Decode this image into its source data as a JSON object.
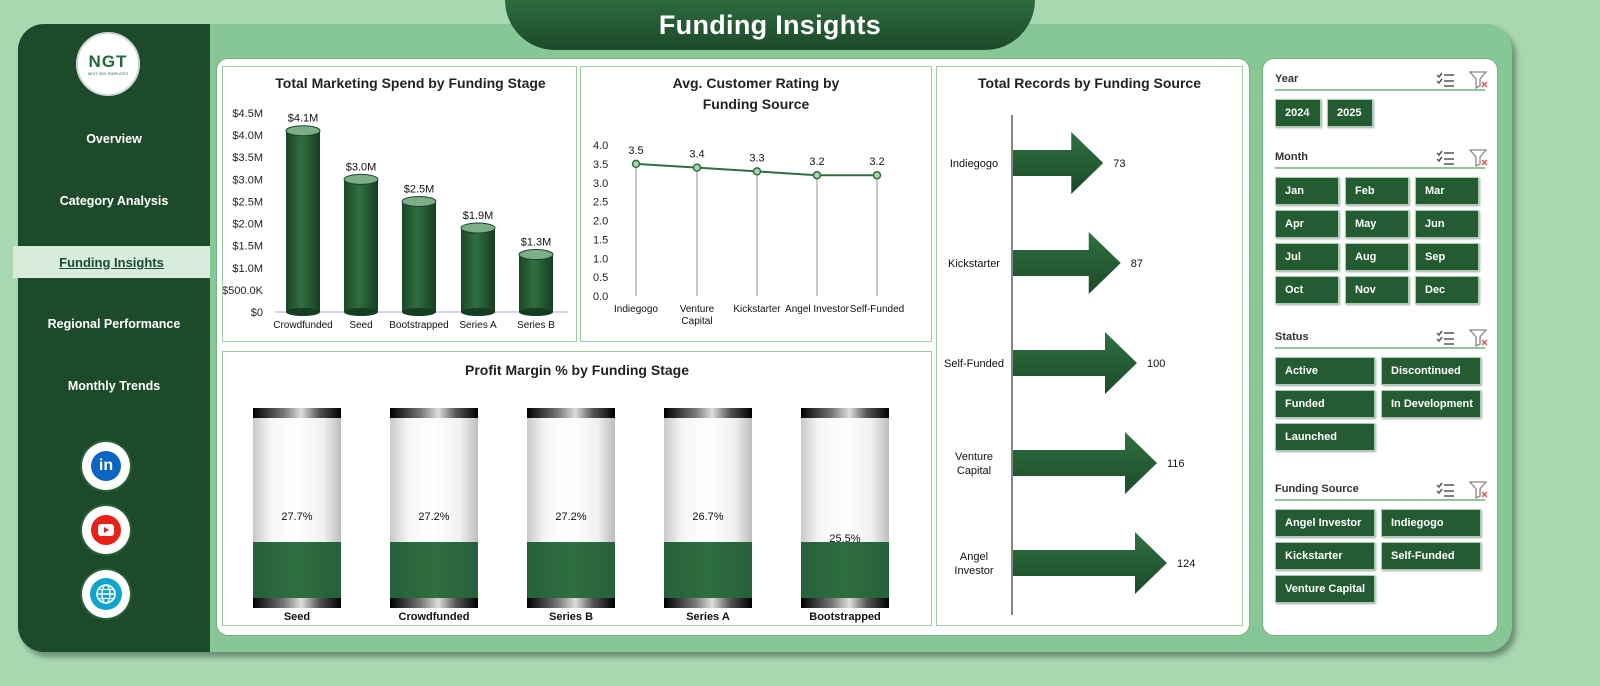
{
  "title": "Funding Insights",
  "logo": {
    "text": "NGT",
    "subtext": "NEXT GEN TEMPLATES"
  },
  "sidebar": {
    "items": [
      {
        "label": "Overview"
      },
      {
        "label": "Category Analysis"
      },
      {
        "label": "Funding Insights",
        "active": true
      },
      {
        "label": "Regional Performance"
      },
      {
        "label": "Monthly Trends"
      }
    ],
    "social": [
      {
        "icon": "linkedin-icon",
        "text": "in",
        "color": "#0a66c2"
      },
      {
        "icon": "youtube-icon",
        "color": "#e62117"
      },
      {
        "icon": "globe-icon",
        "color": "#1d8fd9"
      }
    ]
  },
  "colors": {
    "dark_green": "#1e4a2c",
    "mid_green": "#2f6e3f",
    "bg": "#87c796"
  },
  "chart_data": [
    {
      "id": "marketing",
      "type": "bar",
      "title": "Total Marketing Spend by Funding Stage",
      "categories": [
        "Crowdfunded",
        "Seed",
        "Bootstrapped",
        "Series A",
        "Series B"
      ],
      "values": [
        4.1,
        3.0,
        2.5,
        1.9,
        1.3
      ],
      "data_labels": [
        "$4.1M",
        "$3.0M",
        "$2.5M",
        "$1.9M",
        "$1.3M"
      ],
      "y_ticks": [
        "$0",
        "$500.0K",
        "$1.0M",
        "$1.5M",
        "$2.0M",
        "$2.5M",
        "$3.0M",
        "$3.5M",
        "$4.0M",
        "$4.5M"
      ],
      "ylim": [
        0,
        4.5
      ]
    },
    {
      "id": "rating",
      "type": "line",
      "title": "Avg. Customer Rating by Funding Source",
      "categories": [
        "Indiegogo",
        "Venture Capital",
        "Kickstarter",
        "Angel Investor",
        "Self-Funded"
      ],
      "values": [
        3.5,
        3.4,
        3.3,
        3.2,
        3.2
      ],
      "data_labels": [
        "3.5",
        "3.4",
        "3.3",
        "3.2",
        "3.2"
      ],
      "y_ticks": [
        "0.0",
        "0.5",
        "1.0",
        "1.5",
        "2.0",
        "2.5",
        "3.0",
        "3.5",
        "4.0"
      ],
      "ylim": [
        0,
        4.0
      ]
    },
    {
      "id": "records",
      "type": "bar",
      "title": "Total Records by Funding Source",
      "categories": [
        "Indiegogo",
        "Kickstarter",
        "Self-Funded",
        "Venture Capital",
        "Angel Investor"
      ],
      "values": [
        73,
        87,
        100,
        116,
        124
      ],
      "data_labels": [
        "73",
        "87",
        "100",
        "116",
        "124"
      ]
    },
    {
      "id": "margin",
      "type": "bar",
      "title": "Profit Margin % by Funding Stage",
      "categories": [
        "Seed",
        "Crowdfunded",
        "Series B",
        "Series A",
        "Bootstrapped"
      ],
      "values": [
        27.7,
        27.2,
        27.2,
        26.7,
        25.5
      ],
      "data_labels": [
        "27.7%",
        "27.2%",
        "27.2%",
        "26.7%",
        "25.5%"
      ]
    }
  ],
  "filters": {
    "year": {
      "label": "Year",
      "options": [
        "2024",
        "2025"
      ]
    },
    "month": {
      "label": "Month",
      "options": [
        "Jan",
        "Feb",
        "Mar",
        "Apr",
        "May",
        "Jun",
        "Jul",
        "Aug",
        "Sep",
        "Oct",
        "Nov",
        "Dec"
      ]
    },
    "status": {
      "label": "Status",
      "options": [
        "Active",
        "Discontinued",
        "Funded",
        "In Development",
        "Launched"
      ]
    },
    "source": {
      "label": "Funding Source",
      "options": [
        "Angel Investor",
        "Indiegogo",
        "Kickstarter",
        "Self-Funded",
        "Venture Capital"
      ]
    }
  }
}
